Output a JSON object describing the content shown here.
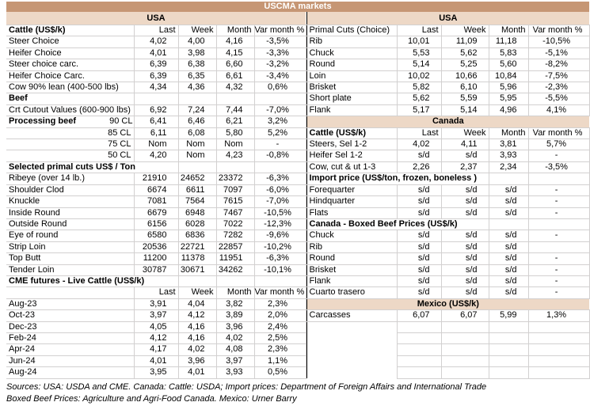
{
  "title": "USCMA markets",
  "palette": {
    "band_dark": "#C69674",
    "band_light": "#EDD8C6",
    "gridline": "#D2D0D0",
    "separator": "#000000",
    "title_text": "#FFFFFF",
    "body_text": "#000000"
  },
  "left_table": {
    "rows": [
      {
        "t": "b",
        "label": "USA"
      },
      {
        "t": "h",
        "cells": [
          "Cattle (US$/k)",
          "Last",
          "Week",
          "Month",
          "Var month %"
        ],
        "bold_label": true
      },
      {
        "t": "d",
        "label": "Steer Choice",
        "values": [
          "4,02",
          "4,00",
          "4,16",
          "-3,5%"
        ]
      },
      {
        "t": "d",
        "label": "Heifer Choice",
        "values": [
          "4,01",
          "3,98",
          "4,15",
          "-3,3%"
        ]
      },
      {
        "t": "d",
        "label": "Steer choice carc.",
        "values": [
          "6,39",
          "6,38",
          "6,60",
          "-3,2%"
        ]
      },
      {
        "t": "d",
        "label": "Heifer Choice Carc.",
        "values": [
          "6,39",
          "6,35",
          "6,61",
          "-3,4%"
        ]
      },
      {
        "t": "d",
        "label": "Cow 90% lean (400-500 lbs)",
        "values": [
          "4,34",
          "4,36",
          "4,32",
          "0,6%"
        ]
      },
      {
        "t": "s",
        "label": "Beef",
        "span": 1
      },
      {
        "t": "d",
        "label": "Crt Cutout Values (600-900 lbs)",
        "values": [
          "6,92",
          "7,24",
          "7,44",
          "-7,0%"
        ]
      },
      {
        "t": "sp",
        "label": "Processing beef",
        "sublabel": "90 CL",
        "values": [
          "6,41",
          "6,46",
          "6,21",
          "3,2%"
        ]
      },
      {
        "t": "dr",
        "label": "85 CL",
        "values": [
          "6,11",
          "6,08",
          "5,80",
          "5,2%"
        ]
      },
      {
        "t": "dr",
        "label": "75 CL",
        "values": [
          "Nom",
          "Nom",
          "Nom",
          "-"
        ]
      },
      {
        "t": "dr",
        "label": "50 CL",
        "values": [
          "4,20",
          "Nom",
          "4,23",
          "-0,8%"
        ]
      },
      {
        "t": "s",
        "label": "Selected primal cuts US$ / Ton",
        "span": 2
      },
      {
        "t": "d",
        "label": "Ribeye (over 14 lb.)",
        "values": [
          "21910",
          "24652",
          "23372",
          "-6,3%"
        ]
      },
      {
        "t": "d",
        "label": "Shoulder Clod",
        "values": [
          "6674",
          "6611",
          "7097",
          "-6,0%"
        ]
      },
      {
        "t": "d",
        "label": "Knuckle",
        "values": [
          "7081",
          "7564",
          "7615",
          "-7,0%"
        ]
      },
      {
        "t": "d",
        "label": "Inside Round",
        "values": [
          "6679",
          "6948",
          "7467",
          "-10,5%"
        ]
      },
      {
        "t": "d",
        "label": "Outside Round",
        "values": [
          "6156",
          "6028",
          "7022",
          "-12,3%"
        ]
      },
      {
        "t": "d",
        "label": "Eye of round",
        "values": [
          "6580",
          "6836",
          "7282",
          "-9,6%"
        ]
      },
      {
        "t": "d",
        "label": "Strip Loin",
        "values": [
          "20536",
          "22721",
          "22857",
          "-10,2%"
        ]
      },
      {
        "t": "d",
        "label": "Top Butt",
        "values": [
          "11200",
          "11378",
          "11951",
          "-6,3%"
        ]
      },
      {
        "t": "d",
        "label": "Tender Loin",
        "values": [
          "30787",
          "30671",
          "34262",
          "-10,1%"
        ]
      },
      {
        "t": "s",
        "label": "CME futures - Live Cattle (US$/k)",
        "span": 2
      },
      {
        "t": "h",
        "cells": [
          "",
          "Last",
          "Week",
          "Month",
          "Var month %"
        ]
      },
      {
        "t": "d",
        "label": "Aug-23",
        "values": [
          "3,91",
          "4,04",
          "3,82",
          "2,3%"
        ]
      },
      {
        "t": "d",
        "label": "Oct-23",
        "values": [
          "3,97",
          "4,12",
          "3,89",
          "2,0%"
        ]
      },
      {
        "t": "d",
        "label": "Dec-23",
        "values": [
          "4,05",
          "4,16",
          "3,96",
          "2,4%"
        ]
      },
      {
        "t": "d",
        "label": "Feb-24",
        "values": [
          "4,12",
          "4,16",
          "4,02",
          "2,5%"
        ]
      },
      {
        "t": "d",
        "label": "Apr-24",
        "values": [
          "4,17",
          "4,02",
          "4,08",
          "2,3%"
        ]
      },
      {
        "t": "d",
        "label": "Jun-24",
        "values": [
          "4,01",
          "3,96",
          "3,97",
          "1,1%"
        ]
      },
      {
        "t": "d",
        "label": "Aug-24",
        "values": [
          "3,95",
          "4,01",
          "3,93",
          "0,5%"
        ]
      }
    ]
  },
  "right_table": {
    "rows": [
      {
        "t": "b",
        "label": "USA"
      },
      {
        "t": "h",
        "cells": [
          "Primal Cuts (Choice)",
          "Last",
          "Week",
          "Month",
          "Var month %"
        ]
      },
      {
        "t": "d",
        "label": "Rib",
        "values": [
          "10,01",
          "11,09",
          "11,18",
          "-10,5%"
        ]
      },
      {
        "t": "d",
        "label": "Chuck",
        "values": [
          "5,53",
          "5,62",
          "5,83",
          "-5,1%"
        ]
      },
      {
        "t": "d",
        "label": "Round",
        "values": [
          "5,14",
          "5,25",
          "5,60",
          "-8,2%"
        ]
      },
      {
        "t": "d",
        "label": "Loin",
        "values": [
          "10,02",
          "10,66",
          "10,84",
          "-7,5%"
        ]
      },
      {
        "t": "d",
        "label": "Brisket",
        "values": [
          "5,82",
          "6,10",
          "5,96",
          "-2,3%"
        ]
      },
      {
        "t": "d",
        "label": "Short plate",
        "values": [
          "5,62",
          "5,59",
          "5,95",
          "-5,5%"
        ]
      },
      {
        "t": "d",
        "label": "Flank",
        "values": [
          "5,17",
          "5,14",
          "4,96",
          "4,1%"
        ]
      },
      {
        "t": "b",
        "label": "Canada"
      },
      {
        "t": "h",
        "cells": [
          "Cattle (US$/k)",
          "Last",
          "Week",
          "Month",
          "Var month %"
        ],
        "bold_label": true
      },
      {
        "t": "d",
        "label": "Steers, Sel 1-2",
        "values": [
          "4,02",
          "4,11",
          "3,81",
          "5,7%"
        ]
      },
      {
        "t": "d",
        "label": "Heifer Sel 1-2",
        "values": [
          "s/d",
          "s/d",
          "3,93",
          "-"
        ]
      },
      {
        "t": "d",
        "label": "Cow, cut & ut 1-3",
        "values": [
          "2,26",
          "2,37",
          "2,34",
          "-3,5%"
        ]
      },
      {
        "t": "s",
        "label": "Import price (US$/ton, frozen, boneless )",
        "span": 3
      },
      {
        "t": "d",
        "label": "Forequarter",
        "values": [
          "s/d",
          "s/d",
          "s/d",
          "-"
        ]
      },
      {
        "t": "d",
        "label": "Hindquarter",
        "values": [
          "s/d",
          "s/d",
          "s/d",
          "-"
        ]
      },
      {
        "t": "d",
        "label": "Flats",
        "values": [
          "s/d",
          "s/d",
          "s/d",
          "-"
        ]
      },
      {
        "t": "s",
        "label": "Canada - Boxed Beef Prices (US$/k)",
        "span": 3
      },
      {
        "t": "d",
        "label": "Chuck",
        "values": [
          "s/d",
          "s/d",
          "s/d",
          "-"
        ]
      },
      {
        "t": "d",
        "label": "Rib",
        "values": [
          "s/d",
          "s/d",
          "s/d",
          ""
        ]
      },
      {
        "t": "d",
        "label": "Round",
        "values": [
          "s/d",
          "s/d",
          "s/d",
          "-"
        ]
      },
      {
        "t": "d",
        "label": "Brisket",
        "values": [
          "s/d",
          "s/d",
          "s/d",
          "-"
        ]
      },
      {
        "t": "d",
        "label": "Flank",
        "values": [
          "s/d",
          "s/d",
          "s/d",
          "-"
        ]
      },
      {
        "t": "d",
        "label": "Cuarto trasero",
        "values": [
          "s/d",
          "s/d",
          "s/d",
          "-"
        ]
      },
      {
        "t": "b",
        "label": "Mexico (US$/k)"
      },
      {
        "t": "d",
        "label": "Carcasses",
        "values": [
          "6,07",
          "6,07",
          "5,99",
          "1,3%"
        ]
      },
      {
        "t": "e"
      },
      {
        "t": "e"
      },
      {
        "t": "e"
      },
      {
        "t": "e"
      },
      {
        "t": "e"
      }
    ]
  },
  "footer": {
    "line1": "Sources: USA: USDA and CME. Canada: Cattle: USDA; Import prices: Department of Foreign Affairs and International Trade",
    "line2": "Boxed Beef Prices: Agriculture and Agri-Food Canada. Mexico: Urner Barry"
  }
}
